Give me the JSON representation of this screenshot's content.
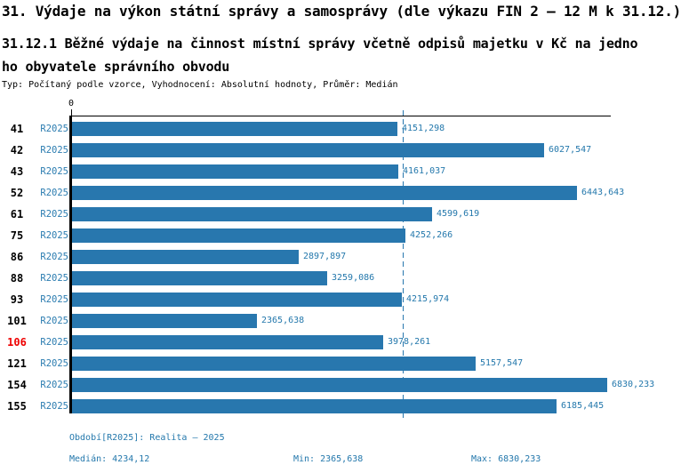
{
  "header": {
    "title": "31. Výdaje na výkon státní správy a samosprávy (dle výkazu FIN 2 – 12 M k 31.12.)",
    "subtitle_line1": "31.12.1 Běžné výdaje na činnost místní správy včetně odpisů majetku v Kč na jedno",
    "subtitle_line2": "ho obyvatele správního obvodu",
    "meta": "Typ: Počítaný podle vzorce, Vyhodnocení: Absolutní hodnoty, Průměr: Medián"
  },
  "chart_data": {
    "type": "bar",
    "orientation": "horizontal",
    "title": "31.12.1 Běžné výdaje na činnost místní správy včetně odpisů majetku v Kč na jednoho obyvatele správního obvodu",
    "series_label": "R2025",
    "categories": [
      "41",
      "42",
      "43",
      "52",
      "61",
      "75",
      "86",
      "88",
      "93",
      "101",
      "106",
      "121",
      "154",
      "155"
    ],
    "values": [
      4151.298,
      6027.547,
      4161.037,
      6443.643,
      4599.619,
      4252.266,
      2897.897,
      3259.086,
      4215.974,
      2365.638,
      3978.261,
      5157.547,
      6830.233,
      6185.445
    ],
    "value_labels": [
      "4151,298",
      "6027,547",
      "4161,037",
      "6443,643",
      "4599,619",
      "4252,266",
      "2897,897",
      "3259,086",
      "4215,974",
      "2365,638",
      "3978,261",
      "5157,547",
      "6830,233",
      "6185,445"
    ],
    "highlighted_category": "106",
    "highlight_color": "#ee0000",
    "xlim": [
      0,
      6890
    ],
    "axis_zero_label": "0",
    "median": 4234.12,
    "min": 2365.638,
    "max": 6830.233,
    "bar_color": "#2877ae",
    "median_line_color": "#2877ae",
    "grid": false,
    "legend": "none"
  },
  "footer": {
    "period": "Období[R2025]: Realita – 2025",
    "median": "Medián: 4234,12",
    "min": "Min: 2365,638",
    "max": "Max: 6830,233"
  }
}
